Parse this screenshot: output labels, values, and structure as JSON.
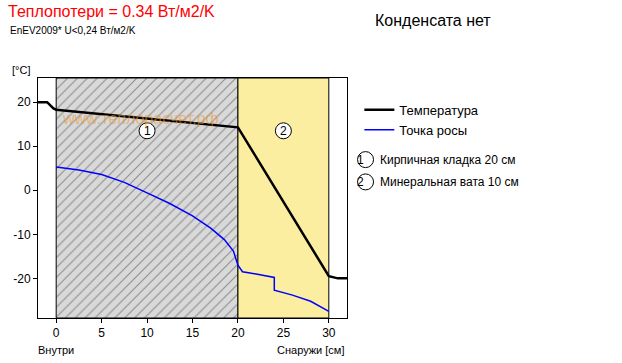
{
  "chart_data": {
    "type": "line",
    "title": "Теплопотери = 0.34 Вт/м2/K",
    "subtitle": "EnEV2009* U<0,24 Вт/м2/K",
    "note": "Конденсата нет",
    "watermark": "www.теплорасчет.рф",
    "ylabel": "[°C]",
    "xlabel_left": "Внутри",
    "xlabel_right": "Снаружи [см]",
    "xlim": [
      -2,
      32
    ],
    "ylim": [
      -29,
      25.5
    ],
    "xticks": [
      0,
      5,
      10,
      15,
      20,
      25,
      30
    ],
    "yticks": [
      -20,
      -10,
      0,
      10,
      20
    ],
    "grid": false,
    "legend": "right",
    "layers": [
      {
        "label": "1",
        "name": "Кирпичная кладка 20 см",
        "x": [
          0,
          20
        ],
        "color": "#d9d9d9"
      },
      {
        "label": "2",
        "name": "Минеральная вата 10 см",
        "x": [
          20,
          30
        ],
        "color": "#fbeea0"
      }
    ],
    "series": [
      {
        "name": "Температура",
        "color": "#000000",
        "x": [
          -2,
          -1,
          -0.3,
          0,
          20,
          30,
          31,
          32
        ],
        "values": [
          20,
          20,
          18.6,
          18.3,
          14.3,
          -19.5,
          -20,
          -20
        ]
      },
      {
        "name": "Точка росы",
        "color": "#0000ff",
        "x": [
          0,
          2.5,
          5,
          7.5,
          10,
          12.5,
          15,
          17,
          18.5,
          19.5,
          20,
          20.5,
          22,
          24,
          24,
          26,
          28,
          30
        ],
        "values": [
          5.3,
          4.6,
          3.6,
          1.8,
          -0.6,
          -3,
          -5.8,
          -8.6,
          -11.2,
          -13.8,
          -17,
          -18.5,
          -19,
          -19.8,
          -22.7,
          -23.8,
          -25.2,
          -27.5
        ]
      }
    ]
  }
}
